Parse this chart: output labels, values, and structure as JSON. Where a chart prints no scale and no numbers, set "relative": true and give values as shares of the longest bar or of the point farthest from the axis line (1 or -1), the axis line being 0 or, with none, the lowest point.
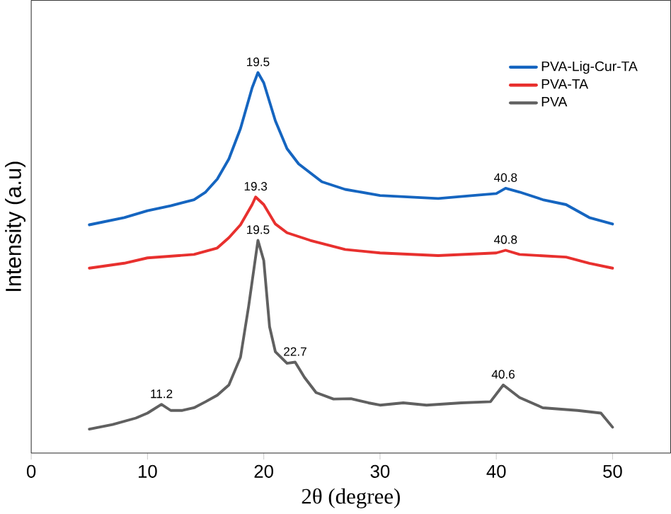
{
  "chart_data": {
    "type": "line",
    "relative": true,
    "xlabel": "2θ (degree)",
    "ylabel": "Intensity (a.u)",
    "xlim": [
      0,
      55
    ],
    "xticks": [
      0,
      10,
      20,
      30,
      40,
      50
    ],
    "legend": "top right",
    "grid": false,
    "marker": "none",
    "line_style": "solid",
    "series": [
      {
        "name": "PVA-Lig-Cur-TA",
        "color": "#1565c0",
        "x": [
          5,
          8,
          10,
          12,
          14,
          15,
          16,
          17,
          18,
          19,
          19.5,
          20,
          21,
          22,
          23,
          25,
          27,
          30,
          35,
          38,
          40,
          40.8,
          42,
          44,
          46,
          48,
          50
        ],
        "values": [
          0.6,
          0.619,
          0.637,
          0.65,
          0.666,
          0.686,
          0.72,
          0.773,
          0.853,
          0.96,
          1,
          0.973,
          0.873,
          0.8,
          0.76,
          0.713,
          0.693,
          0.677,
          0.669,
          0.677,
          0.682,
          0.696,
          0.686,
          0.666,
          0.653,
          0.619,
          0.602
        ]
      },
      {
        "name": "PVA-TA",
        "color": "#e8302e",
        "x": [
          5,
          8,
          10,
          14,
          16,
          17,
          18,
          19,
          19.3,
          20,
          21,
          22,
          24,
          27,
          30,
          35,
          40,
          40.8,
          42,
          46,
          48,
          50
        ],
        "values": [
          0.486,
          0.499,
          0.513,
          0.522,
          0.539,
          0.566,
          0.6,
          0.653,
          0.673,
          0.653,
          0.602,
          0.579,
          0.559,
          0.535,
          0.526,
          0.519,
          0.526,
          0.533,
          0.522,
          0.515,
          0.499,
          0.486
        ]
      },
      {
        "name": "PVA",
        "color": "#606060",
        "x": [
          5,
          7,
          9,
          10,
          11.2,
          12,
          13,
          14,
          15,
          16,
          17,
          18,
          18.7,
          19.5,
          20,
          20.5,
          21,
          22,
          22.7,
          23.5,
          24.5,
          26,
          27.5,
          29,
          30,
          32,
          34,
          37,
          39.5,
          40.6,
          42,
          44,
          47,
          49,
          50
        ],
        "values": [
          0.063,
          0.075,
          0.092,
          0.105,
          0.128,
          0.112,
          0.112,
          0.119,
          0.135,
          0.152,
          0.179,
          0.252,
          0.386,
          0.559,
          0.506,
          0.332,
          0.266,
          0.236,
          0.239,
          0.199,
          0.159,
          0.142,
          0.143,
          0.132,
          0.126,
          0.132,
          0.126,
          0.132,
          0.135,
          0.179,
          0.146,
          0.119,
          0.112,
          0.105,
          0.068
        ]
      }
    ],
    "annotations": [
      {
        "text": "19.5",
        "x": 19.5,
        "y": 1
      },
      {
        "text": "40.8",
        "x": 40.8,
        "y": 0.696
      },
      {
        "text": "19.3",
        "x": 19.3,
        "y": 0.673
      },
      {
        "text": "40.8",
        "x": 40.8,
        "y": 0.533
      },
      {
        "text": "19.5",
        "x": 19.5,
        "y": 0.559
      },
      {
        "text": "22.7",
        "x": 22.7,
        "y": 0.239
      },
      {
        "text": "11.2",
        "x": 11.2,
        "y": 0.128
      },
      {
        "text": "40.6",
        "x": 40.6,
        "y": 0.179
      }
    ]
  }
}
